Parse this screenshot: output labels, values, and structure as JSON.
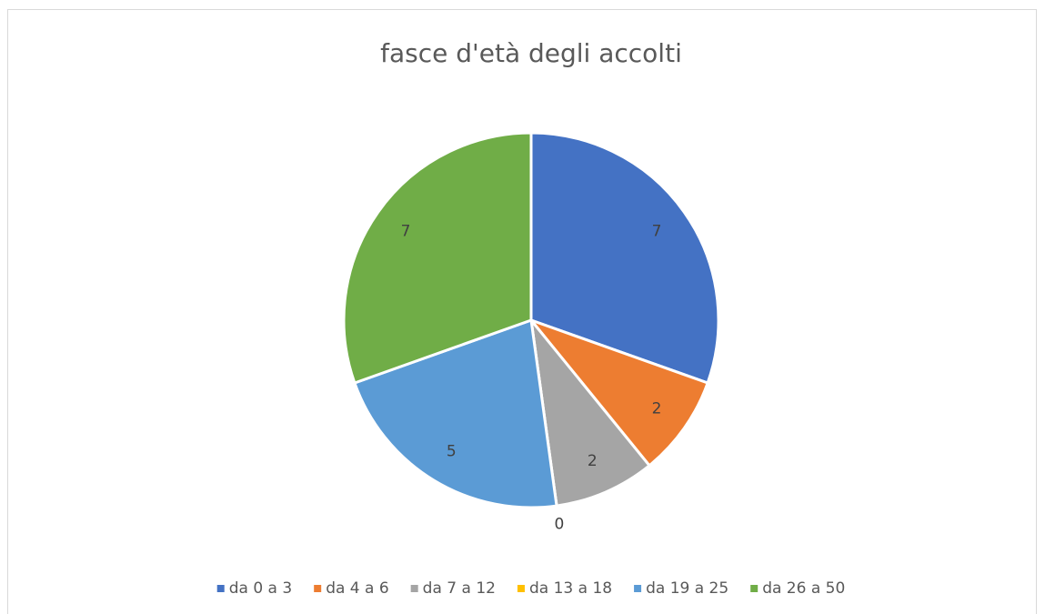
{
  "chart_data": {
    "type": "pie",
    "title": "fasce d'età degli accolti",
    "categories": [
      "da 0 a 3",
      "da 4 a 6",
      "da 7 a 12",
      "da 13 a 18",
      "da 19 a 25",
      "da 26 a 50"
    ],
    "values": [
      7,
      2,
      2,
      0,
      5,
      7
    ],
    "colors": [
      "#4472c4",
      "#ed7d31",
      "#a5a5a5",
      "#ffc000",
      "#5b9bd5",
      "#70ad47"
    ],
    "legend": "bottom"
  }
}
